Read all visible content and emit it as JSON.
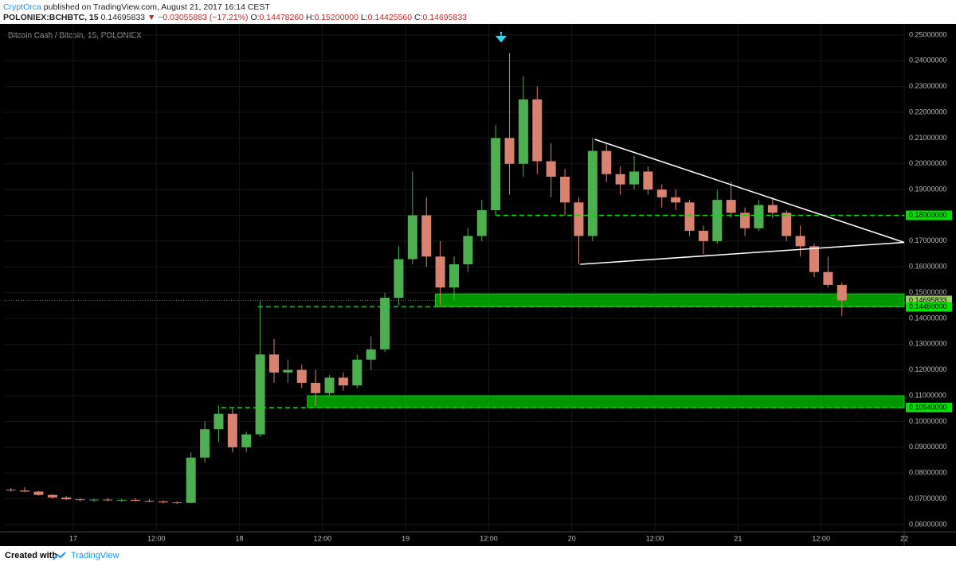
{
  "header": {
    "author": "CryptOrca",
    "published": "published on TradingView.com, August 21, 2017 16:14 CEST",
    "symbol": "POLONIEX:BCHBTC, 15",
    "last": "0.14695833",
    "change_arrow": "▼",
    "change": "−0.03055883 (−17.21%)",
    "o_label": "O:",
    "o": "0.14478260",
    "h_label": "H:",
    "h": "0.15200000",
    "l_label": "L:",
    "l": "0.14425560",
    "c_label": "C:",
    "c": "0.14695833"
  },
  "footer": {
    "created": "Created with",
    "brand": "TradingView"
  },
  "chart_data": {
    "type": "candlestick",
    "title": "Bitcoin Cash / Bitcoin, 15, POLONIEX",
    "up_color": "#4caf50",
    "down_color": "#d9826f",
    "grid": true,
    "xlim": [
      -10,
      120
    ],
    "ylim": [
      0.0572,
      0.2543
    ],
    "xticks": [
      {
        "value": 0,
        "label": "17"
      },
      {
        "value": 12,
        "label": "12:00"
      },
      {
        "value": 24,
        "label": "18"
      },
      {
        "value": 36,
        "label": "12:00"
      },
      {
        "value": 48,
        "label": "19"
      },
      {
        "value": 60,
        "label": "12:00"
      },
      {
        "value": 72,
        "label": "20"
      },
      {
        "value": 84,
        "label": "12:00"
      },
      {
        "value": 96,
        "label": "21"
      },
      {
        "value": 108,
        "label": "12:00"
      },
      {
        "value": 120,
        "label": "22"
      }
    ],
    "yticks": [
      {
        "value": 0.06,
        "label": "0.06000000"
      },
      {
        "value": 0.07,
        "label": "0.07000000"
      },
      {
        "value": 0.08,
        "label": "0.08000000"
      },
      {
        "value": 0.09,
        "label": "0.09000000"
      },
      {
        "value": 0.1,
        "label": "0.10000000"
      },
      {
        "value": 0.11,
        "label": "0.11000000"
      },
      {
        "value": 0.12,
        "label": "0.12000000"
      },
      {
        "value": 0.13,
        "label": "0.13000000"
      },
      {
        "value": 0.14,
        "label": "0.14000000"
      },
      {
        "value": 0.15,
        "label": "0.15000000"
      },
      {
        "value": 0.16,
        "label": "0.16000000"
      },
      {
        "value": 0.17,
        "label": "0.17000000"
      },
      {
        "value": 0.18,
        "label": "0.18000000"
      },
      {
        "value": 0.19,
        "label": "0.19000000"
      },
      {
        "value": 0.2,
        "label": "0.20000000"
      },
      {
        "value": 0.21,
        "label": "0.21000000"
      },
      {
        "value": 0.22,
        "label": "0.22000000"
      },
      {
        "value": 0.23,
        "label": "0.23000000"
      },
      {
        "value": 0.24,
        "label": "0.24000000"
      },
      {
        "value": 0.25,
        "label": "0.25000000"
      }
    ],
    "x": [
      -10,
      -8,
      -6,
      -4,
      -2,
      0,
      2,
      4,
      6,
      8,
      10,
      12,
      14,
      16,
      18,
      20,
      22,
      24,
      26,
      28,
      30,
      32,
      34,
      36,
      38,
      40,
      42,
      44,
      46,
      48,
      50,
      52,
      54,
      56,
      58,
      60,
      62,
      64,
      66,
      68,
      70,
      72,
      74,
      76,
      78,
      80,
      82,
      84,
      86,
      88,
      90,
      92,
      94,
      96,
      98,
      100,
      102,
      104,
      106,
      108,
      110
    ],
    "open": [
      0.0735,
      0.0732,
      0.0728,
      0.0715,
      0.0705,
      0.0698,
      0.0695,
      0.0697,
      0.0694,
      0.0696,
      0.0692,
      0.069,
      0.0686,
      0.0684,
      0.086,
      0.097,
      0.103,
      0.09,
      0.095,
      0.126,
      0.119,
      0.12,
      0.115,
      0.111,
      0.117,
      0.114,
      0.124,
      0.128,
      0.148,
      0.163,
      0.18,
      0.164,
      0.152,
      0.161,
      0.172,
      0.182,
      0.21,
      0.2,
      0.225,
      0.201,
      0.195,
      0.185,
      0.172,
      0.205,
      0.196,
      0.192,
      0.197,
      0.19,
      0.187,
      0.185,
      0.174,
      0.17,
      0.186,
      0.181,
      0.175,
      0.184,
      0.181,
      0.172,
      0.168,
      0.158,
      0.153
    ],
    "high": [
      0.0742,
      0.0745,
      0.0731,
      0.0718,
      0.071,
      0.0702,
      0.07,
      0.0703,
      0.07,
      0.0702,
      0.0698,
      0.0694,
      0.069,
      0.088,
      0.1,
      0.106,
      0.105,
      0.096,
      0.147,
      0.132,
      0.124,
      0.122,
      0.12,
      0.118,
      0.119,
      0.126,
      0.133,
      0.15,
      0.168,
      0.197,
      0.187,
      0.17,
      0.164,
      0.175,
      0.186,
      0.215,
      0.243,
      0.234,
      0.23,
      0.208,
      0.198,
      0.187,
      0.21,
      0.208,
      0.199,
      0.203,
      0.199,
      0.192,
      0.19,
      0.186,
      0.176,
      0.19,
      0.193,
      0.183,
      0.186,
      0.187,
      0.182,
      0.176,
      0.169,
      0.164,
      0.154
    ],
    "low": [
      0.0728,
      0.0725,
      0.0712,
      0.07,
      0.0695,
      0.069,
      0.0688,
      0.069,
      0.0688,
      0.069,
      0.0686,
      0.0682,
      0.068,
      0.0682,
      0.084,
      0.092,
      0.088,
      0.088,
      0.094,
      0.115,
      0.115,
      0.113,
      0.106,
      0.11,
      0.112,
      0.113,
      0.12,
      0.127,
      0.145,
      0.161,
      0.16,
      0.145,
      0.147,
      0.158,
      0.17,
      0.18,
      0.188,
      0.195,
      0.196,
      0.187,
      0.18,
      0.161,
      0.17,
      0.193,
      0.188,
      0.19,
      0.188,
      0.183,
      0.182,
      0.172,
      0.165,
      0.169,
      0.179,
      0.172,
      0.174,
      0.179,
      0.17,
      0.164,
      0.156,
      0.152,
      0.141
    ],
    "close": [
      0.0732,
      0.0728,
      0.0715,
      0.0705,
      0.0698,
      0.0695,
      0.0697,
      0.0694,
      0.0696,
      0.0692,
      0.069,
      0.0686,
      0.0684,
      0.086,
      0.097,
      0.103,
      0.09,
      0.095,
      0.126,
      0.119,
      0.12,
      0.115,
      0.111,
      0.117,
      0.114,
      0.124,
      0.128,
      0.148,
      0.163,
      0.18,
      0.164,
      0.152,
      0.161,
      0.172,
      0.182,
      0.21,
      0.2,
      0.225,
      0.201,
      0.195,
      0.185,
      0.172,
      0.205,
      0.196,
      0.192,
      0.197,
      0.19,
      0.187,
      0.185,
      0.174,
      0.17,
      0.186,
      0.181,
      0.175,
      0.184,
      0.181,
      0.172,
      0.168,
      0.158,
      0.153,
      0.14695833
    ],
    "levels": [
      {
        "x": [
          61,
          120
        ],
        "value": 0.18,
        "label": "0.18000000"
      },
      {
        "x": [
          26.7,
          120
        ],
        "value": 0.1445,
        "label": "0.14450000"
      },
      {
        "x": [
          21.4,
          120
        ],
        "value": 0.1054,
        "label": "0.10540000"
      }
    ],
    "last_price": {
      "value": 0.14695833,
      "label": "0.14695833"
    },
    "zones": [
      {
        "x": [
          52.3,
          120
        ],
        "y": [
          0.1445,
          0.1495
        ]
      },
      {
        "x": [
          33.8,
          120
        ],
        "y": [
          0.1054,
          0.11
        ]
      }
    ],
    "trendlines": [
      {
        "x": [
          75.3,
          120
        ],
        "y": [
          0.2095,
          0.1695
        ]
      },
      {
        "x": [
          73.2,
          120
        ],
        "y": [
          0.161,
          0.1695
        ]
      }
    ]
  }
}
